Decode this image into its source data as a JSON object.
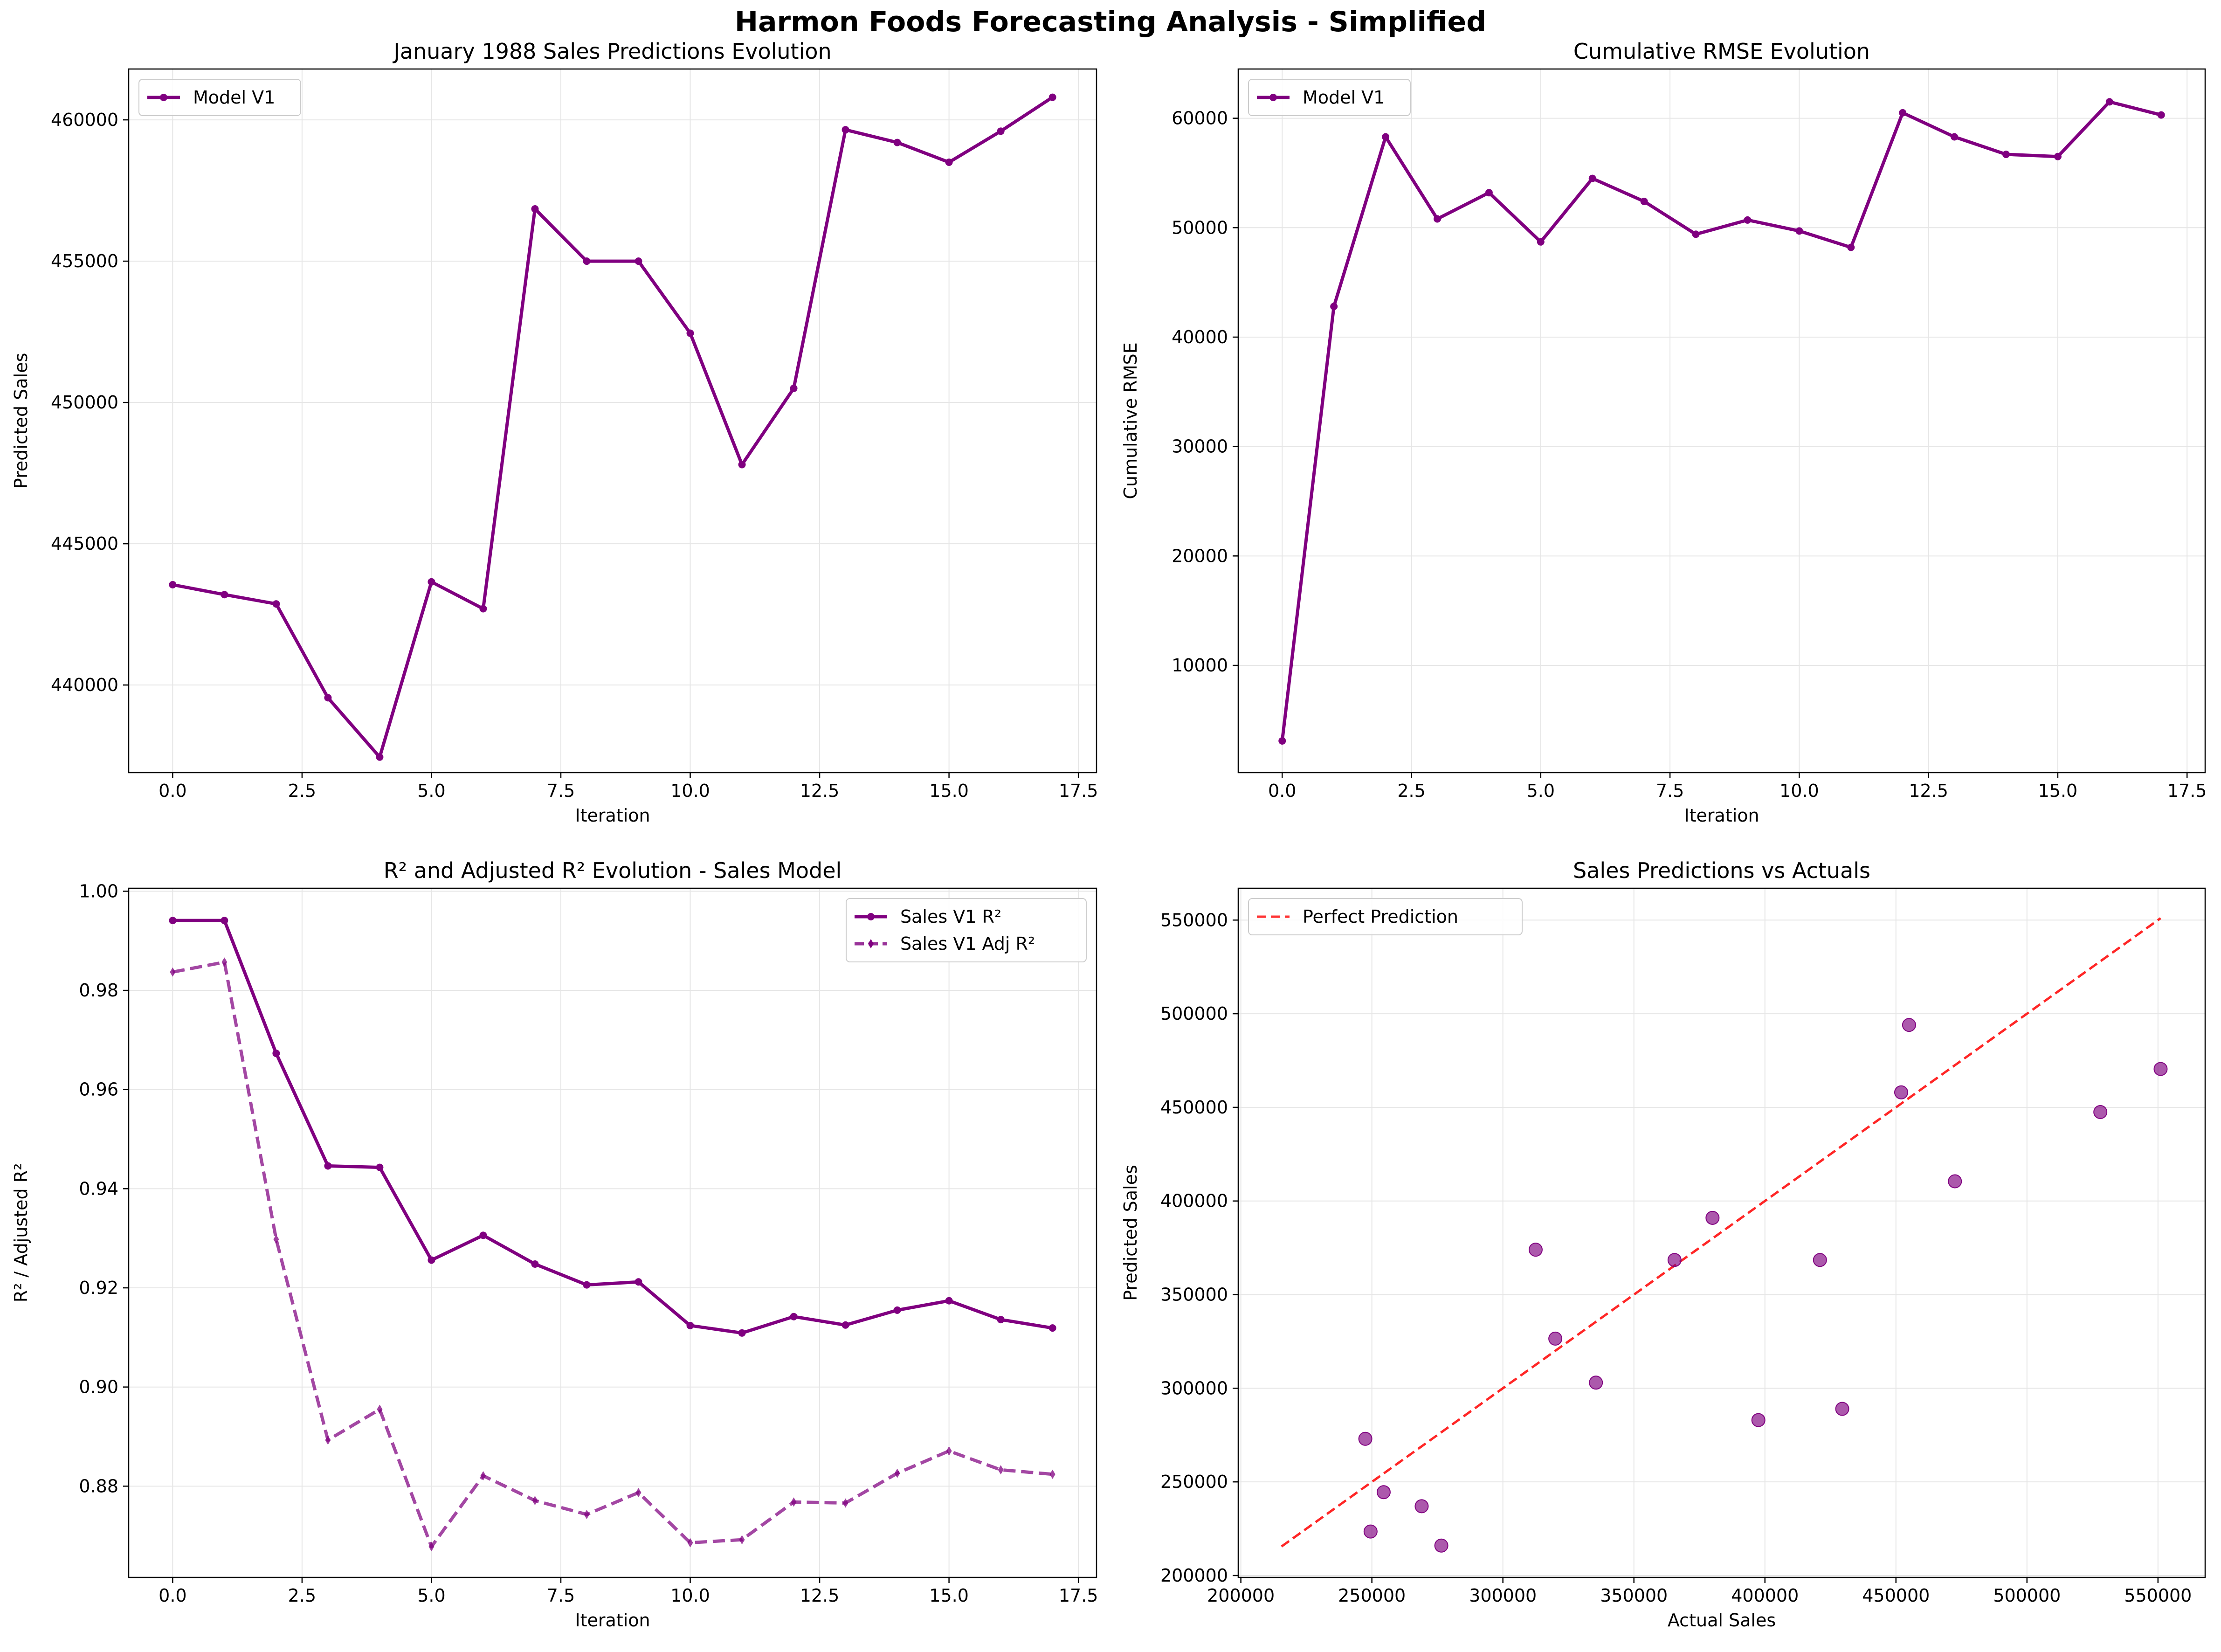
{
  "figure_title": "Harmon Foods Forecasting Analysis - Simplified",
  "colors": {
    "purple": "#800080",
    "red_dashed": "#ff0000",
    "grid": "#e6e6e6",
    "axis": "#000000"
  },
  "chart_data": [
    {
      "id": "p1",
      "type": "line",
      "title": "January 1988 Sales Predictions Evolution",
      "xlabel": "Iteration",
      "ylabel": "Predicted Sales",
      "xlim": [
        -0.85,
        17.85
      ],
      "ylim": [
        436900,
        461800
      ],
      "xticks": [
        0.0,
        2.5,
        5.0,
        7.5,
        10.0,
        12.5,
        15.0,
        17.5
      ],
      "xtick_labels": [
        "0.0",
        "2.5",
        "5.0",
        "7.5",
        "10.0",
        "12.5",
        "15.0",
        "17.5"
      ],
      "yticks": [
        440000,
        445000,
        450000,
        455000,
        460000
      ],
      "ytick_labels": [
        "440000",
        "445000",
        "450000",
        "455000",
        "460000"
      ],
      "grid": true,
      "legend_position": "upper-left",
      "series": [
        {
          "name": "Model V1",
          "style": "solid-dot",
          "color": "#800080",
          "x": [
            0,
            1,
            2,
            3,
            4,
            5,
            6,
            7,
            8,
            9,
            10,
            11,
            12,
            13,
            14,
            15,
            16,
            17
          ],
          "y": [
            443550,
            443200,
            442870,
            439550,
            437450,
            443650,
            442700,
            456850,
            455000,
            455000,
            452450,
            447800,
            450500,
            459650,
            459200,
            458500,
            459600,
            460800
          ]
        }
      ]
    },
    {
      "id": "p2",
      "type": "line",
      "title": "Cumulative RMSE Evolution",
      "xlabel": "Iteration",
      "ylabel": "Cumulative RMSE",
      "xlim": [
        -0.85,
        17.85
      ],
      "ylim": [
        200,
        64500
      ],
      "xticks": [
        0.0,
        2.5,
        5.0,
        7.5,
        10.0,
        12.5,
        15.0,
        17.5
      ],
      "xtick_labels": [
        "0.0",
        "2.5",
        "5.0",
        "7.5",
        "10.0",
        "12.5",
        "15.0",
        "17.5"
      ],
      "yticks": [
        10000,
        20000,
        30000,
        40000,
        50000,
        60000
      ],
      "ytick_labels": [
        "10000",
        "20000",
        "30000",
        "40000",
        "50000",
        "60000"
      ],
      "grid": true,
      "legend_position": "upper-left",
      "series": [
        {
          "name": "Model V1",
          "style": "solid-dot",
          "color": "#800080",
          "x": [
            0,
            1,
            2,
            3,
            4,
            5,
            6,
            7,
            8,
            9,
            10,
            11,
            12,
            13,
            14,
            15,
            16,
            17
          ],
          "y": [
            3100,
            42800,
            58300,
            50800,
            53200,
            48700,
            54500,
            52400,
            49400,
            50700,
            49700,
            48200,
            60500,
            58300,
            56700,
            56500,
            61500,
            60300
          ]
        }
      ]
    },
    {
      "id": "p3",
      "type": "line",
      "title": "R² and Adjusted R² Evolution - Sales Model",
      "xlabel": "Iteration",
      "ylabel": "R² / Adjusted R²",
      "xlim": [
        -0.85,
        17.85
      ],
      "ylim": [
        0.8616,
        1.0006
      ],
      "xticks": [
        0.0,
        2.5,
        5.0,
        7.5,
        10.0,
        12.5,
        15.0,
        17.5
      ],
      "xtick_labels": [
        "0.0",
        "2.5",
        "5.0",
        "7.5",
        "10.0",
        "12.5",
        "15.0",
        "17.5"
      ],
      "yticks": [
        0.88,
        0.9,
        0.92,
        0.94,
        0.96,
        0.98,
        1.0
      ],
      "ytick_labels": [
        "0.88",
        "0.90",
        "0.92",
        "0.94",
        "0.96",
        "0.98",
        "1.00"
      ],
      "grid": true,
      "legend_position": "upper-right",
      "series": [
        {
          "name": "Sales V1 R²",
          "style": "solid-dot",
          "color": "#800080",
          "x": [
            0,
            1,
            2,
            3,
            4,
            5,
            6,
            7,
            8,
            9,
            10,
            11,
            12,
            13,
            14,
            15,
            16,
            17
          ],
          "y": [
            0.9941,
            0.9941,
            0.9673,
            0.9446,
            0.9443,
            0.9256,
            0.9306,
            0.9248,
            0.9206,
            0.9212,
            0.9124,
            0.9109,
            0.9142,
            0.9125,
            0.9155,
            0.9174,
            0.9136,
            0.9119
          ]
        },
        {
          "name": "Sales V1 Adj R²",
          "style": "dashed-diamond",
          "color": "#800080",
          "x": [
            0,
            1,
            2,
            3,
            4,
            5,
            6,
            7,
            8,
            9,
            10,
            11,
            12,
            13,
            14,
            15,
            16,
            17
          ],
          "y": [
            0.9837,
            0.9857,
            0.9298,
            0.8893,
            0.8955,
            0.8678,
            0.8821,
            0.8771,
            0.8743,
            0.8787,
            0.8686,
            0.8692,
            0.8768,
            0.8766,
            0.8826,
            0.8871,
            0.8833,
            0.8824
          ]
        }
      ]
    },
    {
      "id": "p4",
      "type": "scatter",
      "title": "Sales Predictions vs Actuals",
      "xlabel": "Actual Sales",
      "ylabel": "Predicted Sales",
      "xlim": [
        199000,
        568000
      ],
      "ylim": [
        199000,
        567000
      ],
      "xticks": [
        200000,
        250000,
        300000,
        350000,
        400000,
        450000,
        500000,
        550000
      ],
      "xtick_labels": [
        "200000",
        "250000",
        "300000",
        "350000",
        "400000",
        "450000",
        "500000",
        "550000"
      ],
      "yticks": [
        200000,
        250000,
        300000,
        350000,
        400000,
        450000,
        500000,
        550000
      ],
      "ytick_labels": [
        "200000",
        "250000",
        "300000",
        "350000",
        "400000",
        "450000",
        "500000",
        "550000"
      ],
      "grid": true,
      "legend_position": "upper-left",
      "reference_line": {
        "name": "Perfect Prediction",
        "color": "#ff0000",
        "style": "dashed",
        "x": [
          215500,
          551000
        ],
        "y": [
          215500,
          551000
        ]
      },
      "points": {
        "color": "#800080",
        "x": [
          247500,
          249500,
          254500,
          269000,
          276500,
          312500,
          320000,
          335500,
          365500,
          380000,
          397500,
          421000,
          429500,
          452000,
          455000,
          472500,
          528000,
          551000
        ],
        "y": [
          273000,
          223500,
          244500,
          237000,
          216000,
          374000,
          326500,
          303000,
          368500,
          391000,
          283000,
          368500,
          289000,
          458000,
          494000,
          410500,
          447500,
          470500
        ]
      }
    }
  ]
}
